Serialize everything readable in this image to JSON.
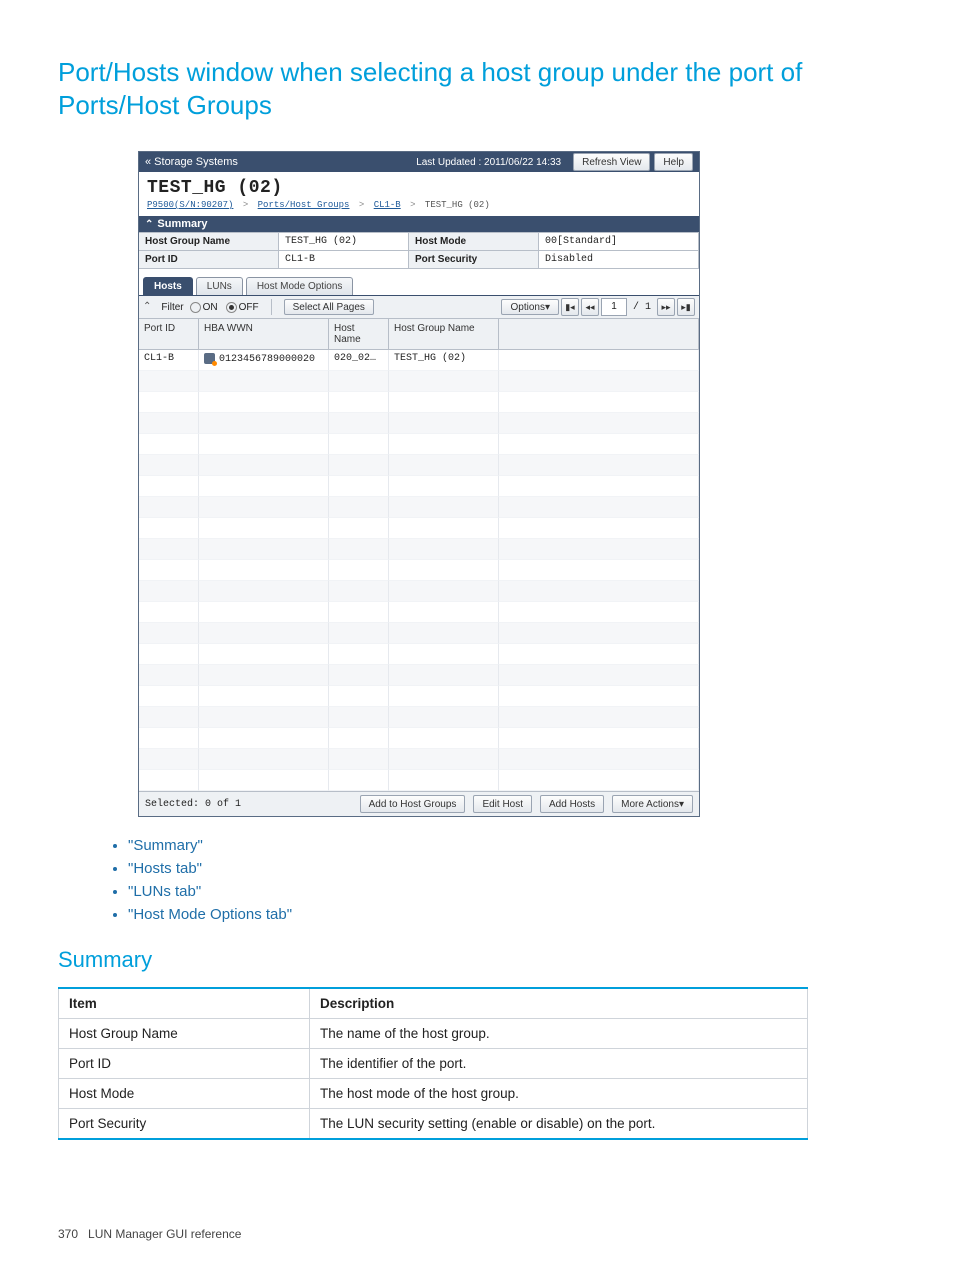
{
  "page": {
    "title": "Port/Hosts window when selecting a host group under the port of Ports/Host Groups",
    "section_summary_title": "Summary",
    "footer_page": "370",
    "footer_text": "LUN Manager GUI reference"
  },
  "topbar": {
    "storage_systems": "« Storage Systems",
    "last_updated": "Last Updated : 2011/06/22 14:33",
    "refresh": "Refresh View",
    "help": "Help"
  },
  "header": {
    "title": "TEST_HG (02)",
    "crumb1": "P9500(S/N:90207)",
    "crumb2": "Ports/Host Groups",
    "crumb3": "CL1-B",
    "crumb4": "TEST_HG (02)"
  },
  "summary_bar": "Summary",
  "summary": {
    "hg_label": "Host Group Name",
    "hg_value": "TEST_HG (02)",
    "pid_label": "Port ID",
    "pid_value": "CL1-B",
    "hm_label": "Host Mode",
    "hm_value": "00[Standard]",
    "ps_label": "Port Security",
    "ps_value": "Disabled"
  },
  "tabs": {
    "hosts": "Hosts",
    "luns": "LUNs",
    "hmo": "Host Mode Options"
  },
  "tbar": {
    "filter": "Filter",
    "on": "ON",
    "off": "OFF",
    "select_all": "Select All Pages",
    "options": "Options",
    "page_current": "1",
    "page_total": "/ 1"
  },
  "cols": {
    "port": "Port ID",
    "wwn": "HBA WWN",
    "hname": "Host Name",
    "hg": "Host Group Name"
  },
  "row": {
    "port": "CL1-B",
    "wwn": "0123456789000020",
    "hname": "020_02…",
    "hg": "TEST_HG (02)"
  },
  "abar": {
    "selected": "Selected:  0   of  1",
    "add_to_hg": "Add to Host Groups",
    "edit": "Edit Host",
    "add": "Add Hosts",
    "more": "More Actions"
  },
  "links": {
    "l1": "\"Summary\"",
    "l2": "\"Hosts tab\"",
    "l3": "\"LUNs tab\"",
    "l4": "\"Host Mode Options tab\""
  },
  "sumtable": {
    "h1": "Item",
    "h2": "Description",
    "r1a": "Host Group Name",
    "r1b": "The name of the host group.",
    "r2a": "Port ID",
    "r2b": "The identifier of the port.",
    "r3a": "Host Mode",
    "r3b": "The host mode of the host group.",
    "r4a": "Port Security",
    "r4b": "The LUN security setting (enable or disable) on the port."
  }
}
